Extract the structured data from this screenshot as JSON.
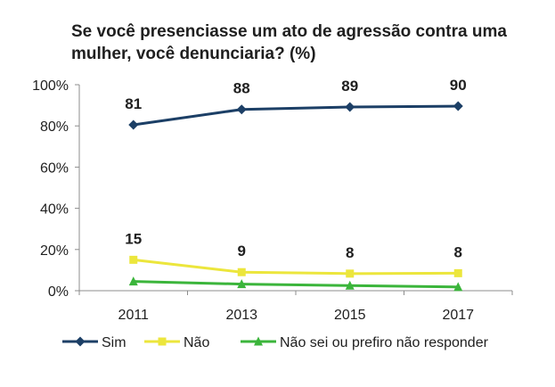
{
  "chart_data": {
    "type": "line",
    "title_lines": [
      "Se você presenciasse um ato de agressão contra uma",
      "mulher, você denunciaria? (%)"
    ],
    "categories": [
      "2011",
      "2013",
      "2015",
      "2017"
    ],
    "ylim": [
      0,
      100
    ],
    "yticks": [
      0,
      20,
      40,
      60,
      80,
      100
    ],
    "ytick_labels": [
      "0%",
      "20%",
      "40%",
      "60%",
      "80%",
      "100%"
    ],
    "legend_position": "bottom",
    "series": [
      {
        "name": "Sim",
        "values": [
          81,
          88,
          89,
          90
        ],
        "plot_values": [
          80.5,
          88,
          89.2,
          89.6
        ],
        "labels": [
          "81",
          "88",
          "89",
          "90"
        ],
        "color": "#1c3f66",
        "marker": "diamond"
      },
      {
        "name": "Não",
        "values": [
          15,
          9,
          8,
          8
        ],
        "plot_values": [
          15,
          9,
          8.3,
          8.5
        ],
        "labels": [
          "15",
          "9",
          "8",
          "8"
        ],
        "color": "#ece63c",
        "marker": "square"
      },
      {
        "name": "Não sei ou prefiro não responder",
        "values": [
          4,
          3,
          2,
          2
        ],
        "plot_values": [
          4.5,
          3.2,
          2.5,
          1.8
        ],
        "labels": [],
        "color": "#3bb53b",
        "marker": "triangle"
      }
    ]
  }
}
